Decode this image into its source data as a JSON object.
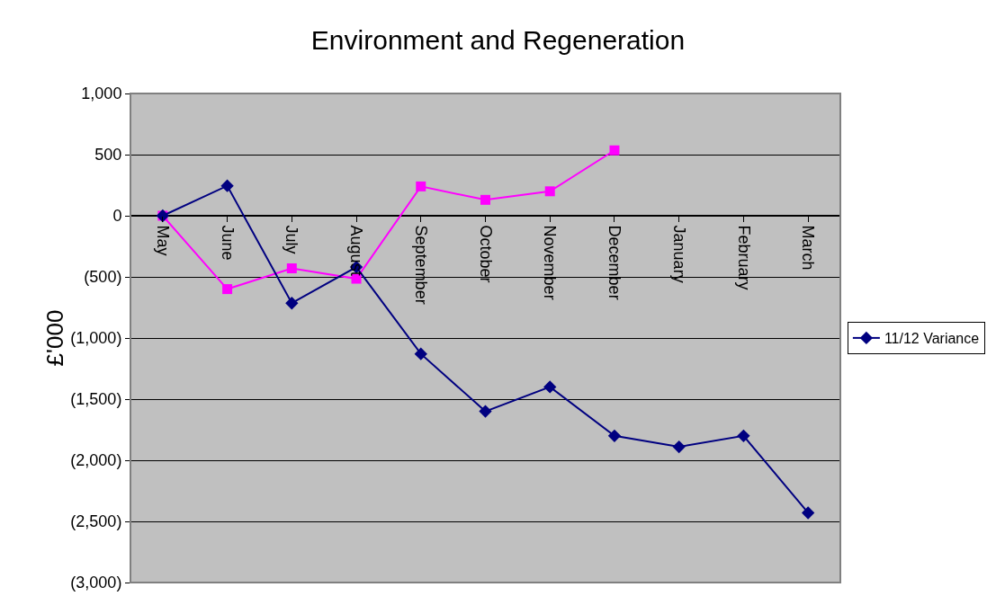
{
  "chart_data": {
    "type": "line",
    "title": "Environment and Regeneration",
    "ylabel": "£'000",
    "categories": [
      "May",
      "June",
      "July",
      "August",
      "September",
      "October",
      "November",
      "December",
      "January",
      "February",
      "March"
    ],
    "series": [
      {
        "name": "11/12 Variance",
        "color": "#000080",
        "marker": "diamond",
        "values": [
          0,
          245,
          -715,
          -420,
          -1130,
          -1600,
          -1400,
          -1800,
          -1890,
          -1800,
          -2430
        ]
      },
      {
        "color": "#ff00ff",
        "marker": "square",
        "values": [
          0,
          -600,
          -430,
          -515,
          240,
          130,
          200,
          535,
          null,
          null,
          null
        ]
      }
    ],
    "ylim": [
      -3000,
      1000
    ],
    "yticks": [
      {
        "value": -3000,
        "label": "(3,000)"
      },
      {
        "value": -2500,
        "label": "(2,500)"
      },
      {
        "value": -2000,
        "label": "(2,000)"
      },
      {
        "value": -1500,
        "label": "(1,500)"
      },
      {
        "value": -1000,
        "label": "(1,000)"
      },
      {
        "value": -500,
        "label": "(500)"
      },
      0,
      500,
      {
        "value": 1000,
        "label": "1,000"
      }
    ],
    "grid": "y",
    "legend": "right",
    "line_style": "solid"
  }
}
